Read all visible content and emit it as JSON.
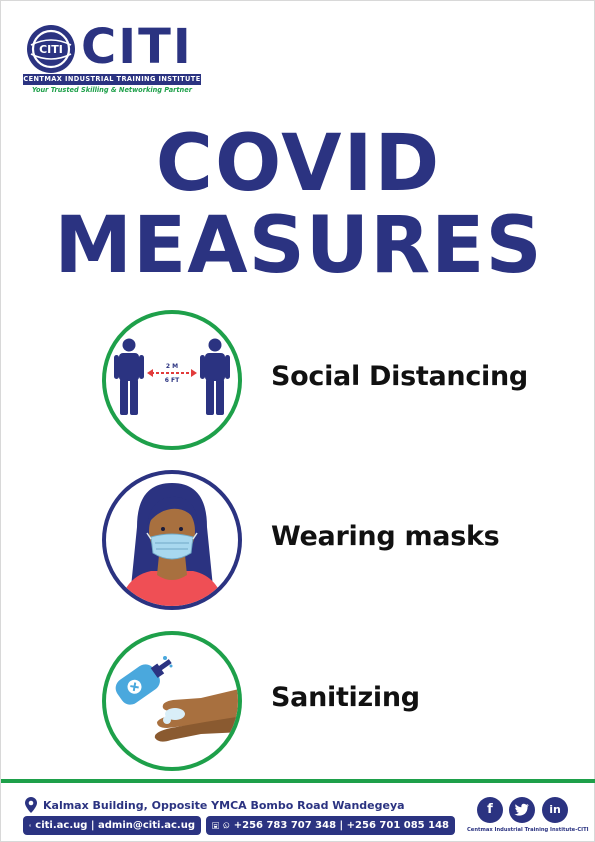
{
  "logo": {
    "name": "CITI",
    "full_name": "CENTMAX INDUSTRIAL TRAINING INSTITUTE",
    "tagline": "Your Trusted Skilling & Networking Partner",
    "mark_text": "CITI"
  },
  "title": {
    "line1": "COVID",
    "line2": "MEASURES"
  },
  "measures": [
    {
      "label": "Social Distancing",
      "icon": "social-distancing-icon",
      "distance_m": "2 M",
      "distance_ft": "6 FT"
    },
    {
      "label": "Wearing masks",
      "icon": "woman-mask-icon"
    },
    {
      "label": "Sanitizing",
      "icon": "hand-sanitizer-icon"
    }
  ],
  "footer": {
    "address": "Kalmax Building, Opposite YMCA Bombo Road Wandegeya",
    "web_email": "citi.ac.ug | admin@citi.ac.ug",
    "phones": "+256 783 707 348 | +256 701 085 148",
    "social": [
      "f",
      "t",
      "in"
    ],
    "brand": "Centmax Industrial Training Institute-CITI"
  },
  "colors": {
    "navy": "#2b3381",
    "green": "#1ea04a",
    "skin": "#a8703f",
    "shirt": "#ef4f55",
    "mask": "#a8d8ef"
  }
}
